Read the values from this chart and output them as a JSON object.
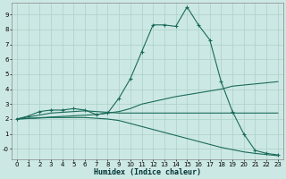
{
  "xlabel": "Humidex (Indice chaleur)",
  "bg_color": "#cce8e4",
  "grid_color": "#b0d4cc",
  "line_color": "#1a6b5a",
  "xlim": [
    -0.5,
    23.5
  ],
  "ylim": [
    -0.7,
    9.8
  ],
  "xticks": [
    0,
    1,
    2,
    3,
    4,
    5,
    6,
    7,
    8,
    9,
    10,
    11,
    12,
    13,
    14,
    15,
    16,
    17,
    18,
    19,
    20,
    21,
    22,
    23
  ],
  "yticks": [
    0,
    1,
    2,
    3,
    4,
    5,
    6,
    7,
    8,
    9
  ],
  "series": [
    {
      "x": [
        0,
        1,
        2,
        3,
        4,
        5,
        6,
        7,
        8,
        9,
        10,
        11,
        12,
        13,
        14,
        15,
        16,
        17,
        18,
        19,
        20,
        21,
        22,
        23
      ],
      "y": [
        2.0,
        2.2,
        2.5,
        2.6,
        2.6,
        2.7,
        2.6,
        2.3,
        2.4,
        3.4,
        4.7,
        6.5,
        8.3,
        8.3,
        8.2,
        9.5,
        8.3,
        7.3,
        4.5,
        2.5,
        1.0,
        -0.1,
        -0.3,
        -0.4
      ],
      "marker": true
    },
    {
      "x": [
        0,
        7,
        9,
        10,
        11,
        14,
        18,
        19,
        23
      ],
      "y": [
        2.0,
        2.3,
        2.5,
        2.7,
        3.0,
        3.5,
        4.0,
        4.2,
        4.5
      ],
      "marker": false
    },
    {
      "x": [
        0,
        3,
        5,
        6,
        7,
        8,
        9,
        10,
        14,
        18,
        19,
        23
      ],
      "y": [
        2.0,
        2.4,
        2.5,
        2.55,
        2.5,
        2.45,
        2.4,
        2.4,
        2.4,
        2.4,
        2.4,
        2.4
      ],
      "marker": false
    },
    {
      "x": [
        0,
        3,
        6,
        7,
        8,
        9,
        10,
        11,
        12,
        13,
        14,
        15,
        16,
        17,
        18,
        19,
        20,
        21,
        22,
        23
      ],
      "y": [
        2.0,
        2.1,
        2.1,
        2.05,
        2.0,
        1.9,
        1.7,
        1.5,
        1.3,
        1.1,
        0.9,
        0.7,
        0.5,
        0.3,
        0.1,
        -0.05,
        -0.2,
        -0.3,
        -0.38,
        -0.45
      ],
      "marker": false
    }
  ]
}
